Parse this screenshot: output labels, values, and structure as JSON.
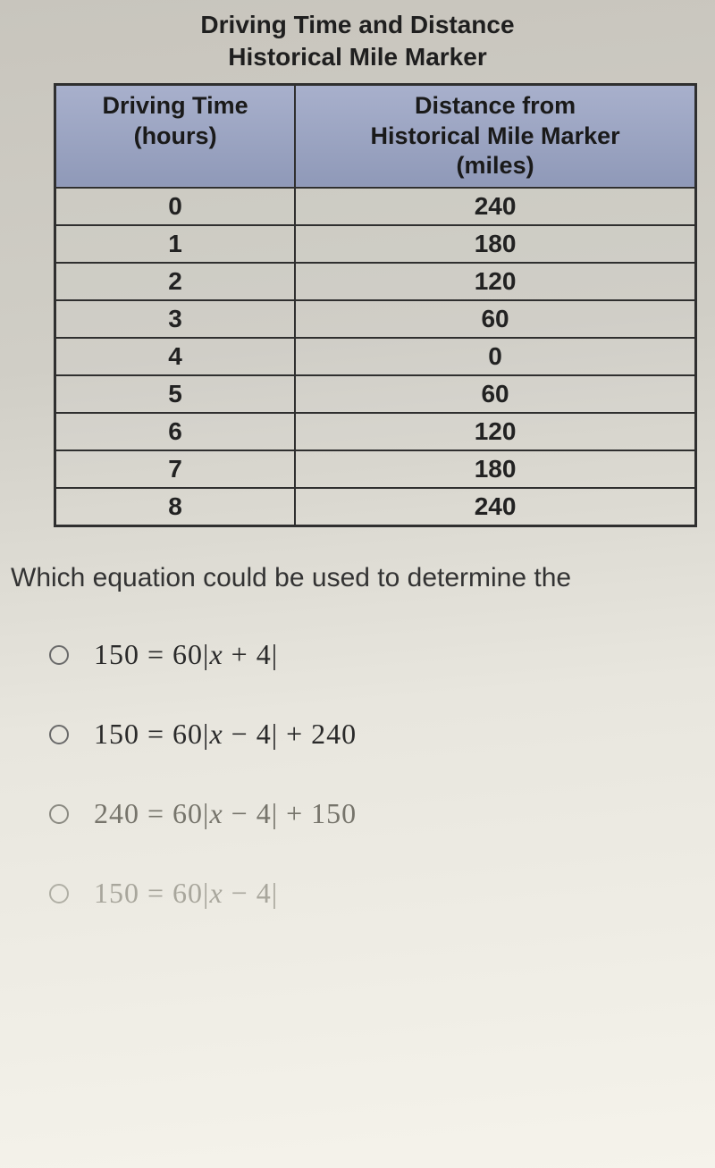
{
  "title_line1": "Driving Time and Distance",
  "title_line2": "Historical Mile Marker",
  "table": {
    "header_col1_line1": "Driving Time",
    "header_col1_line2": "(hours)",
    "header_col2_line1": "Distance from",
    "header_col2_line2": "Historical Mile Marker",
    "header_col2_line3": "(miles)",
    "rows": [
      {
        "time": "0",
        "dist": "240"
      },
      {
        "time": "1",
        "dist": "180"
      },
      {
        "time": "2",
        "dist": "120"
      },
      {
        "time": "3",
        "dist": "60"
      },
      {
        "time": "4",
        "dist": "0"
      },
      {
        "time": "5",
        "dist": "60"
      },
      {
        "time": "6",
        "dist": "120"
      },
      {
        "time": "7",
        "dist": "180"
      },
      {
        "time": "8",
        "dist": "240"
      }
    ]
  },
  "question_text": "Which equation could be used to determine the",
  "options": {
    "a": "150 = 60|x + 4|",
    "b": "150 = 60|x − 4| + 240",
    "c": "240 = 60|x − 4| + 150",
    "d": "150 = 60|x − 4|"
  },
  "styling": {
    "header_bg": "#9da6c4",
    "border_color": "#2f2f2f",
    "title_fontsize": 28,
    "cell_fontsize": 28,
    "question_fontsize": 30,
    "option_fontsize": 32,
    "faded_color_1": "#76746b",
    "faded_color_2": "#a8a69c"
  }
}
